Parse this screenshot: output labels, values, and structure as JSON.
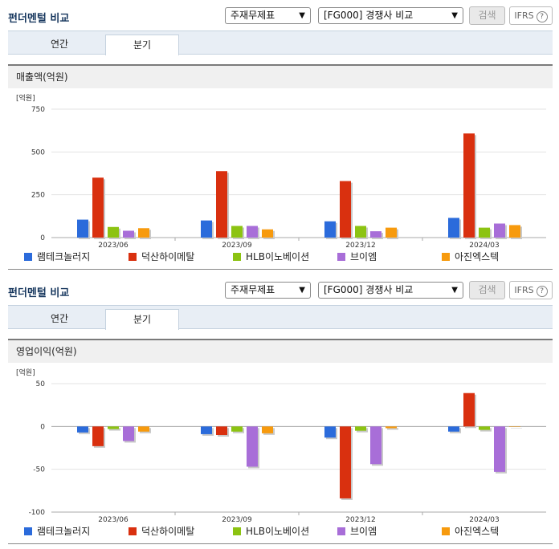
{
  "colors": {
    "series": [
      "#2b6bdb",
      "#d9300f",
      "#8cc312",
      "#a86ed8",
      "#f79a0d"
    ],
    "title": "#17375e"
  },
  "legend": [
    "램테크놀러지",
    "덕산하이메탈",
    "HLB이노베이션",
    "브이엠",
    "아진엑스텍"
  ],
  "panels": [
    {
      "title": "펀더멘털 비교",
      "select_type": "주재무제표",
      "select_group": "[FG000] 경쟁사 비교",
      "search_label": "검색",
      "ifrs_label": "IFRS",
      "help_label": "?",
      "tabs": [
        "연간",
        "분기"
      ],
      "metric_label": "매출액(억원)",
      "chart_data": {
        "type": "bar",
        "unit_label": "[억원]",
        "categories": [
          "2023/06",
          "2023/09",
          "2023/12",
          "2024/03"
        ],
        "ylim": [
          0,
          750
        ],
        "yticks": [
          0,
          250,
          500,
          750
        ],
        "series": [
          {
            "name": "램테크놀러지",
            "values": [
              105,
              100,
              95,
              115
            ]
          },
          {
            "name": "덕산하이메탈",
            "values": [
              350,
              388,
              330,
              608
            ]
          },
          {
            "name": "HLB이노베이션",
            "values": [
              62,
              68,
              68,
              58
            ]
          },
          {
            "name": "브이엠",
            "values": [
              40,
              68,
              37,
              82
            ]
          },
          {
            "name": "아진엑스텍",
            "values": [
              55,
              48,
              58,
              73
            ]
          }
        ]
      }
    },
    {
      "title": "펀더멘털 비교",
      "select_type": "주재무제표",
      "select_group": "[FG000] 경쟁사 비교",
      "search_label": "검색",
      "ifrs_label": "IFRS",
      "help_label": "?",
      "tabs": [
        "연간",
        "분기"
      ],
      "metric_label": "영업이익(억원)",
      "chart_data": {
        "type": "bar",
        "unit_label": "[억원]",
        "categories": [
          "2023/06",
          "2023/09",
          "2023/12",
          "2024/03"
        ],
        "ylim": [
          -100,
          50
        ],
        "yticks": [
          -100,
          -50,
          0,
          50
        ],
        "series": [
          {
            "name": "램테크놀러지",
            "values": [
              -7,
              -9,
              -13,
              -6
            ]
          },
          {
            "name": "덕산하이메탈",
            "values": [
              -23,
              -10,
              -84,
              39
            ]
          },
          {
            "name": "HLB이노베이션",
            "values": [
              -3,
              -6,
              -5,
              -4
            ]
          },
          {
            "name": "브이엠",
            "values": [
              -17,
              -47,
              -44,
              -53
            ]
          },
          {
            "name": "아진엑스텍",
            "values": [
              -6,
              -8,
              -2,
              0
            ]
          }
        ]
      }
    }
  ]
}
